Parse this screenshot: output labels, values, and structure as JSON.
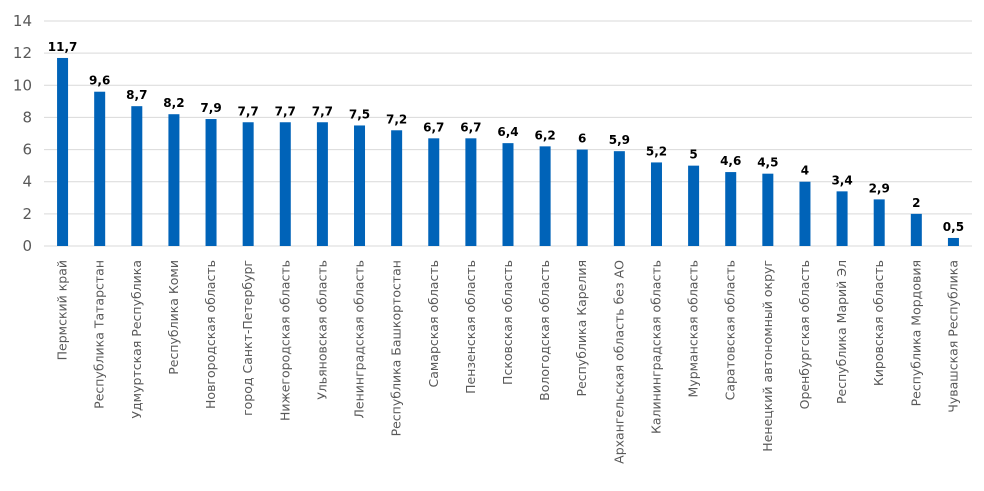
{
  "chart_data": {
    "type": "bar",
    "title": "",
    "xlabel": "",
    "ylabel": "",
    "ylim": [
      0,
      14
    ],
    "y_ticks": [
      0,
      2,
      4,
      6,
      8,
      10,
      12,
      14
    ],
    "grid": true,
    "legend": "none",
    "bar_color": "#0063B8",
    "grid_color": "#D9D9D9",
    "categories": [
      "Пермский край",
      "Республика Татарстан",
      "Удмуртская Республика",
      "Республика Коми",
      "Новгородская область",
      "город Санкт-Петербург",
      "Нижегородская область",
      "Ульяновская область",
      "Ленинградская область",
      "Республика Башкортостан",
      "Самарская область",
      "Пензенская область",
      "Псковская область",
      "Вологодская область",
      "Республика Карелия",
      "Архангельская область без АО",
      "Калининградская область",
      "Мурманская область",
      "Саратовская область",
      "Ненецкий автономный округ",
      "Оренбургская область",
      "Республика Марий Эл",
      "Кировская область",
      "Республика Мордовия",
      "Чувашская Республика"
    ],
    "values": [
      11.7,
      9.6,
      8.7,
      8.2,
      7.9,
      7.7,
      7.7,
      7.7,
      7.5,
      7.2,
      6.7,
      6.7,
      6.4,
      6.2,
      6,
      5.9,
      5.2,
      5,
      4.6,
      4.5,
      4,
      3.4,
      2.9,
      2,
      0.5
    ],
    "data_labels": [
      "11,7",
      "9,6",
      "8,7",
      "8,2",
      "7,9",
      "7,7",
      "7,7",
      "7,7",
      "7,5",
      "7,2",
      "6,7",
      "6,7",
      "6,4",
      "6,2",
      "6",
      "5,9",
      "5,2",
      "5",
      "4,6",
      "4,5",
      "4",
      "3,4",
      "2,9",
      "2",
      "0,5"
    ]
  }
}
